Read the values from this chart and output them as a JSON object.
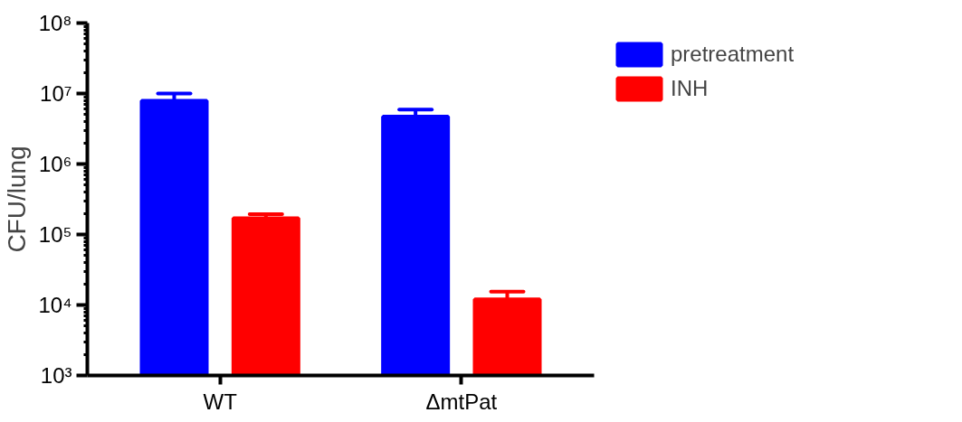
{
  "chart_data": {
    "type": "bar",
    "ylabel": "CFU/lung",
    "categories": [
      "WT",
      "ΔmtPat"
    ],
    "log": true,
    "ylim": [
      1000,
      100000000
    ],
    "yticks": [
      {
        "value": 1000,
        "label": "10³"
      },
      {
        "value": 10000,
        "label": "10⁴"
      },
      {
        "value": 100000,
        "label": "10⁵"
      },
      {
        "value": 1000000,
        "label": "10⁶"
      },
      {
        "value": 10000000,
        "label": "10⁷"
      },
      {
        "value": 100000000,
        "label": "10⁸"
      }
    ],
    "series": [
      {
        "name": "pretreatment",
        "color": "#0000ff",
        "values": [
          7900000,
          4700000
        ],
        "errors": [
          [
            7900000,
            10000000
          ],
          [
            4700000,
            5900000
          ]
        ]
      },
      {
        "name": "INH",
        "color": "#ff0000",
        "values": [
          170000,
          12000
        ],
        "errors": [
          [
            170000,
            195000
          ],
          [
            12000,
            15500
          ]
        ]
      }
    ],
    "grid": false,
    "legend": "top right"
  }
}
